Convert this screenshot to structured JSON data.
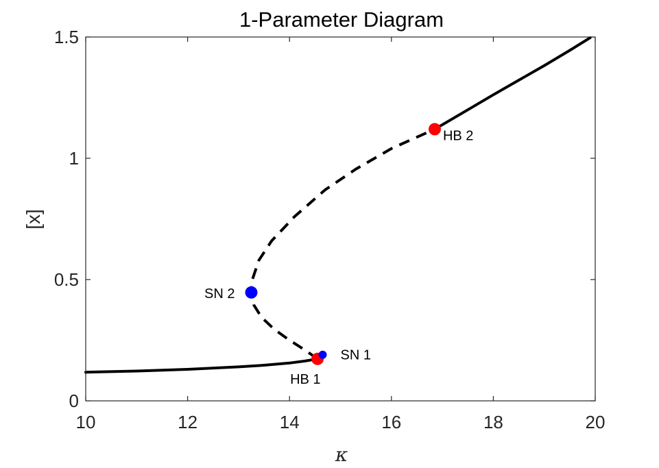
{
  "chart_data": {
    "type": "line",
    "title": "1-Parameter Diagram",
    "xlabel": "κ",
    "ylabel": "[x]",
    "xlim": [
      10,
      20
    ],
    "ylim": [
      0,
      1.5
    ],
    "xticks": [
      10,
      12,
      14,
      16,
      18,
      20
    ],
    "yticks": [
      0,
      0.5,
      1,
      1.5
    ],
    "xtick_labels": [
      "10",
      "12",
      "14",
      "16",
      "18",
      "20"
    ],
    "ytick_labels": [
      "0",
      "0.5",
      "1",
      "1.5"
    ],
    "grid": false,
    "series": [
      {
        "stability": "stable",
        "style": "solid",
        "color": "#000000",
        "x": [
          10.0,
          11.0,
          12.0,
          13.0,
          13.5,
          14.0,
          14.3,
          14.55
        ],
        "y": [
          0.118,
          0.123,
          0.13,
          0.14,
          0.147,
          0.156,
          0.164,
          0.173
        ]
      },
      {
        "stability": "unstable",
        "style": "dashed",
        "color": "#000000",
        "x": [
          14.55,
          14.3,
          14.0,
          13.7,
          13.45,
          13.3,
          13.25,
          13.27,
          13.4,
          13.65,
          14.1,
          14.7,
          15.3,
          16.0,
          16.85
        ],
        "y": [
          0.173,
          0.21,
          0.25,
          0.295,
          0.345,
          0.395,
          0.447,
          0.5,
          0.58,
          0.66,
          0.76,
          0.87,
          0.955,
          1.04,
          1.12
        ]
      },
      {
        "stability": "stable",
        "style": "solid",
        "color": "#000000",
        "x": [
          16.85,
          17.5,
          18.0,
          18.5,
          19.0,
          19.5,
          19.9
        ],
        "y": [
          1.12,
          1.2,
          1.262,
          1.322,
          1.382,
          1.445,
          1.497
        ]
      }
    ],
    "points": [
      {
        "label": "HB 1",
        "x": 14.55,
        "y": 0.173,
        "color": "#ff0000",
        "label_pos": "below-left"
      },
      {
        "label": "SN 1",
        "x": 14.65,
        "y": 0.19,
        "color": "#0000ff",
        "label_pos": "right"
      },
      {
        "label": "SN 2",
        "x": 13.25,
        "y": 0.447,
        "color": "#0000ff",
        "label_pos": "left"
      },
      {
        "label": "HB 2",
        "x": 16.85,
        "y": 1.12,
        "color": "#ff0000",
        "label_pos": "below-right"
      }
    ]
  }
}
